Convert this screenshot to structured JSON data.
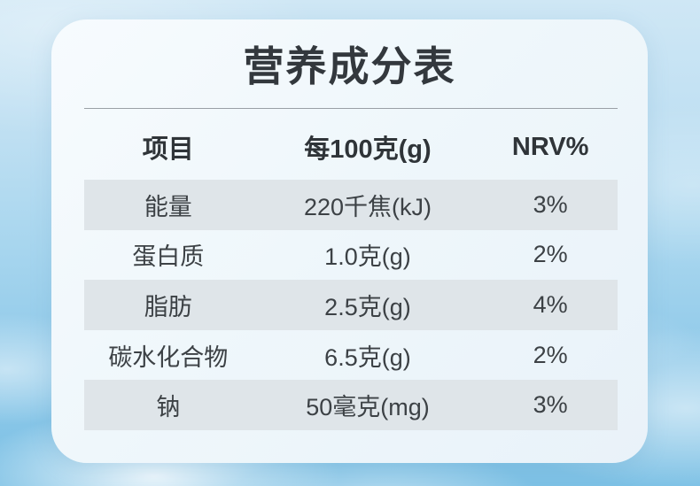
{
  "title": "营养成分表",
  "table": {
    "headers": [
      "项目",
      "每100克(g)",
      "NRV%"
    ],
    "rows": [
      {
        "item": "能量",
        "per100g": "220千焦(kJ)",
        "nrv": "3%"
      },
      {
        "item": "蛋白质",
        "per100g": "1.0克(g)",
        "nrv": "2%"
      },
      {
        "item": "脂肪",
        "per100g": "2.5克(g)",
        "nrv": "4%"
      },
      {
        "item": "碳水化合物",
        "per100g": "6.5克(g)",
        "nrv": "2%"
      },
      {
        "item": "钠",
        "per100g": "50毫克(mg)",
        "nrv": "3%"
      }
    ]
  },
  "colors": {
    "sky_top": "#cfe7f5",
    "sky_bottom": "#7dc1e5",
    "card_background": "#eff7fb",
    "row_stripe": "#dfe5e9",
    "text": "#33383d",
    "divider": "#9aa0a6"
  }
}
